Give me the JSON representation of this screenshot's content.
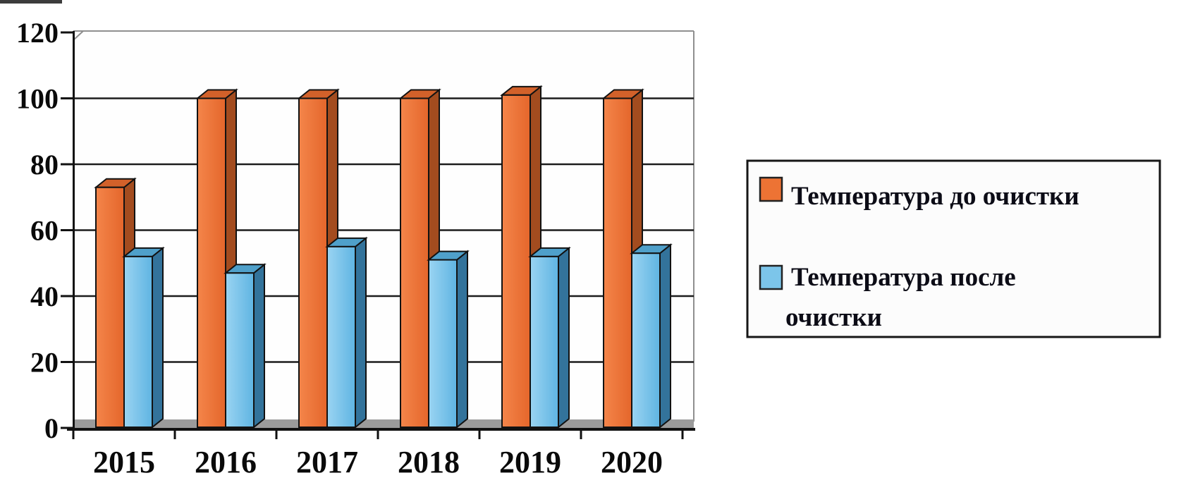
{
  "chart_data": {
    "type": "bar",
    "style": "3d-column-excel",
    "title": "",
    "xlabel": "",
    "ylabel": "",
    "categories": [
      "2015",
      "2016",
      "2017",
      "2018",
      "2019",
      "2020"
    ],
    "series": [
      {
        "name": "Температура до очистки",
        "values": [
          73,
          100,
          100,
          100,
          101,
          100
        ],
        "colors": {
          "front_light": "#F4854A",
          "front_dark": "#E4662B",
          "top": "#D2612A",
          "side": "#A34C1F",
          "legend": "#ED7334"
        }
      },
      {
        "name": "Температура после очистки",
        "values": [
          52,
          47,
          55,
          51,
          52,
          53
        ],
        "colors": {
          "front_light": "#9AD4F2",
          "front_dark": "#5FB4E2",
          "top": "#4FA0CA",
          "side": "#33739B",
          "legend": "#7CC5EA"
        }
      }
    ],
    "ylim": [
      0,
      120
    ],
    "yticks": [
      0,
      20,
      40,
      60,
      80,
      100,
      120
    ],
    "grid": true,
    "legend_position": "right"
  },
  "legend": {
    "items": [
      {
        "series": 0,
        "lines": [
          "Температура до очистки"
        ]
      },
      {
        "series": 1,
        "lines": [
          "Температура после",
          "очистки"
        ]
      }
    ]
  },
  "colors": {
    "page_background": "#ffffff",
    "wall": "#fefefe",
    "axis": "#111111",
    "grid": "#1c1c1c",
    "frame": "#8f8f8f",
    "floor": "#9b9b9b",
    "bar_outline": "#121212",
    "tick_text": "#0a0a0a",
    "legend_text": "#0c0c16",
    "legend_border": "#161616",
    "legend_background": "#fcfcfc",
    "scan_artifact": "#3c3c3c"
  }
}
